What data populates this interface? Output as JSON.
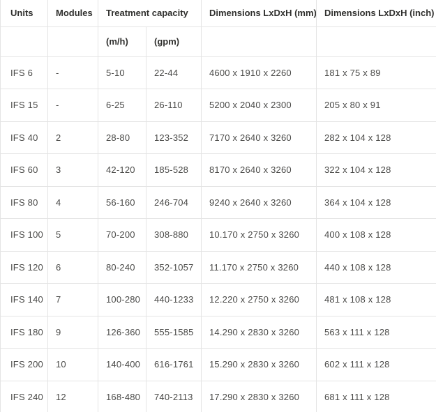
{
  "table": {
    "header": {
      "col_units": "Units",
      "col_modules": "Modules",
      "col_treatment": "Treatment capacity",
      "col_dim_mm": "Dimensions LxDxH (mm)",
      "col_dim_inch": "Dimensions LxDxH (inch)",
      "sub_mh": "(m/h)",
      "sub_gpm": "(gpm)"
    },
    "rows": [
      [
        "IFS 6",
        "-",
        "5-10",
        "22-44",
        "4600 x 1910 x 2260",
        "181 x 75 x 89"
      ],
      [
        "IFS 15",
        "-",
        "6-25",
        "26-110",
        "5200 x 2040 x 2300",
        "205 x 80 x 91"
      ],
      [
        "IFS 40",
        "2",
        "28-80",
        "123-352",
        "7170 x 2640 x 3260",
        "282 x 104 x 128"
      ],
      [
        "IFS 60",
        "3",
        "42-120",
        "185-528",
        "8170 x 2640 x 3260",
        "322 x 104 x 128"
      ],
      [
        "IFS 80",
        "4",
        "56-160",
        "246-704",
        "9240 x 2640 x 3260",
        "364 x 104 x 128"
      ],
      [
        "IFS 100",
        "5",
        "70-200",
        "308-880",
        "10.170 x 2750 x 3260",
        "400 x 108 x 128"
      ],
      [
        "IFS 120",
        "6",
        "80-240",
        "352-1057",
        "11.170 x 2750 x 3260",
        "440 x 108 x 128"
      ],
      [
        "IFS 140",
        "7",
        "100-280",
        "440-1233",
        "12.220 x 2750 x 3260",
        "481 x 108 x 128"
      ],
      [
        "IFS 180",
        "9",
        "126-360",
        "555-1585",
        "14.290 x 2830 x 3260",
        "563 x 111 x 128"
      ],
      [
        "IFS 200",
        "10",
        "140-400",
        "616-1761",
        "15.290 x 2830 x 3260",
        "602 x 111 x 128"
      ],
      [
        "IFS 240",
        "12",
        "168-480",
        "740-2113",
        "17.290 x 2830 x 3260",
        "681 x 111 x 128"
      ]
    ]
  },
  "colors": {
    "border": "#e4e4e4",
    "header_text": "#30302e",
    "body_text": "#4a4a48",
    "background": "#ffffff"
  }
}
